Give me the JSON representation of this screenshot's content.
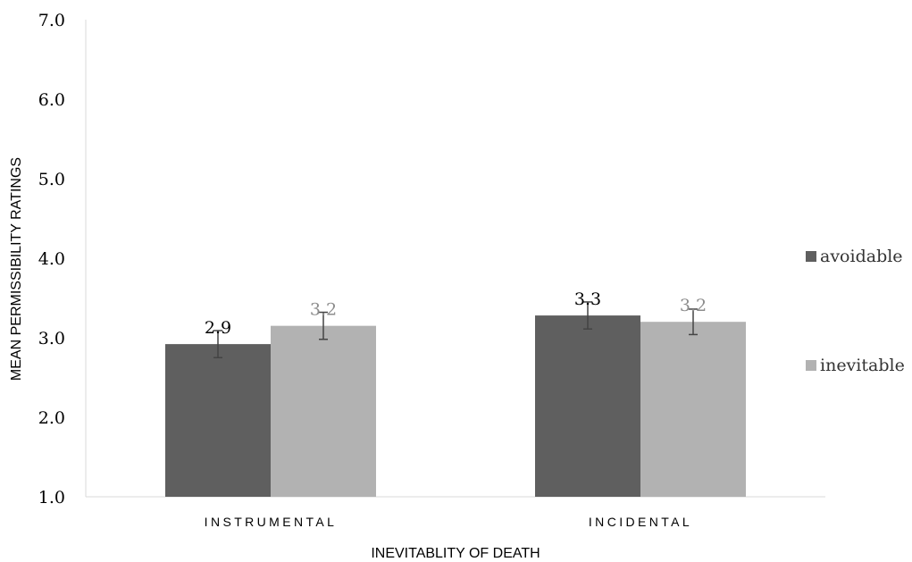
{
  "chart_data": {
    "type": "bar",
    "title": "",
    "xlabel": "INEVITABLITY OF DEATH",
    "ylabel": "MEAN PERMISSIBILITY RATINGS",
    "ylim": [
      1.0,
      7.0
    ],
    "yticks": [
      "1.0",
      "2.0",
      "3.0",
      "4.0",
      "5.0",
      "6.0",
      "7.0"
    ],
    "categories": [
      "INSTRUMENTAL",
      "INCIDENTAL"
    ],
    "series": [
      {
        "name": "avoidable",
        "color": "#5f5f5f",
        "label_color": "#000000",
        "values": [
          2.92,
          3.28
        ],
        "labels": [
          "2.9",
          "3.3"
        ],
        "error": [
          0.17,
          0.17
        ]
      },
      {
        "name": "inevitable",
        "color": "#b2b2b2",
        "label_color": "#8c8c8c",
        "values": [
          3.15,
          3.2
        ],
        "labels": [
          "3.2",
          "3.2"
        ],
        "error": [
          0.17,
          0.16
        ]
      }
    ],
    "gridlines": false,
    "error_bars": true,
    "legend_position": "right"
  }
}
